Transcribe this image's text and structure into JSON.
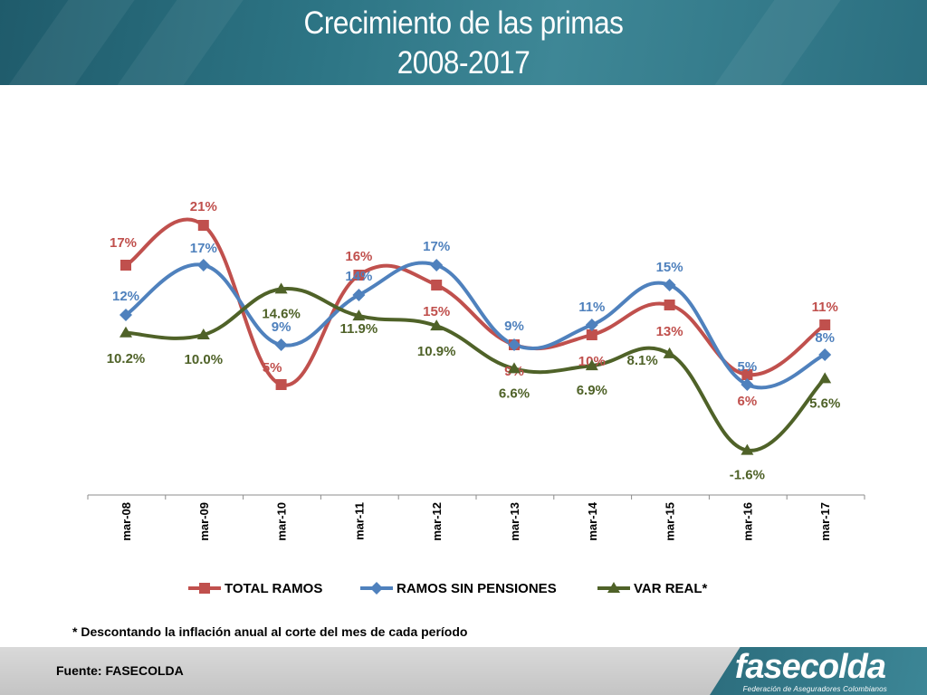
{
  "header": {
    "title_line1": "Crecimiento de las primas",
    "title_line2": "2008-2017"
  },
  "chart_data": {
    "type": "line",
    "categories": [
      "mar-08",
      "mar-09",
      "mar-10",
      "mar-11",
      "mar-12",
      "mar-13",
      "mar-14",
      "mar-15",
      "mar-16",
      "mar-17"
    ],
    "ylim": [
      -15,
      30
    ],
    "grid": false,
    "legend": "bottom",
    "series": [
      {
        "name": "TOTAL RAMOS",
        "color": "#c0504d",
        "marker": "square",
        "values": [
          17,
          21,
          5,
          16,
          15,
          9,
          10,
          13,
          6,
          11
        ],
        "labels": [
          "17%",
          "21%",
          "5%",
          "16%",
          "15%",
          "9%",
          "10%",
          "13%",
          "6%",
          "11%"
        ]
      },
      {
        "name": "RAMOS SIN PENSIONES",
        "color": "#4f81bd",
        "marker": "diamond",
        "values": [
          12,
          17,
          9,
          14,
          17,
          9,
          11,
          15,
          5,
          8
        ],
        "labels": [
          "12%",
          "17%",
          "9%",
          "14%",
          "17%",
          "9%",
          "11%",
          "15%",
          "5%",
          "8%"
        ]
      },
      {
        "name": "VAR REAL*",
        "color": "#4f6228",
        "marker": "triangle",
        "values": [
          10.2,
          10.0,
          14.6,
          11.9,
          10.9,
          6.6,
          6.9,
          8.1,
          -1.6,
          5.6
        ],
        "labels": [
          "10.2%",
          "10.0%",
          "14.6%",
          "11.9%",
          "10.9%",
          "6.6%",
          "6.9%",
          "8.1%",
          "-1.6%",
          "5.6%"
        ]
      }
    ]
  },
  "footnote": "* Descontando la inflación anual al corte del mes de cada período",
  "footer": {
    "source": "Fuente: FASECOLDA",
    "logo_text": "fasecolda",
    "logo_subtitle": "Federación de Aseguradores Colombianos"
  }
}
